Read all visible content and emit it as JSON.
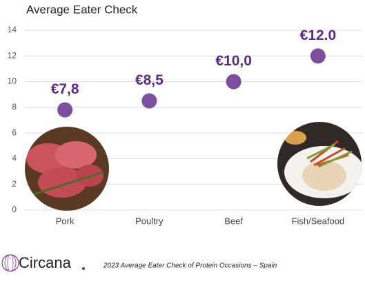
{
  "chart_data": {
    "type": "dot",
    "title": "Average Eater Check",
    "categories": [
      "Pork",
      "Poultry",
      "Beef",
      "Fish/Seafood"
    ],
    "values": [
      7.8,
      8.5,
      10.0,
      12.0
    ],
    "value_labels": [
      "€7,8",
      "€8,5",
      "€10,0",
      "€12.0"
    ],
    "color": "#7b4f9e",
    "ylim": [
      0,
      14
    ],
    "yticks": [
      0,
      2,
      4,
      6,
      8,
      10,
      12,
      14
    ],
    "grid": true
  },
  "brand": "Circana",
  "caption": "2023 Average Eater Check of Protein Occasions – Spain"
}
